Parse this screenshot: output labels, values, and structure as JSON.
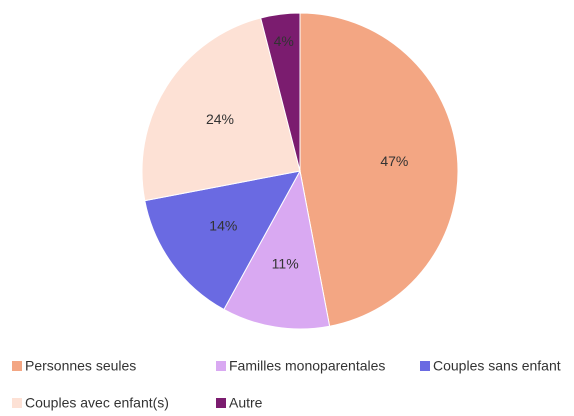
{
  "chart_data": {
    "type": "pie",
    "categories": [
      "Personnes seules",
      "Familles monoparentales",
      "Couples sans enfant",
      "Couples avec enfant(s)",
      "Autre"
    ],
    "values": [
      47,
      11,
      14,
      24,
      4
    ],
    "value_labels": [
      "47%",
      "11%",
      "14%",
      "24%",
      "4%"
    ],
    "colors": [
      "#f3a683",
      "#d9a9f2",
      "#6a6ae2",
      "#fde1d5",
      "#7b1c6f"
    ],
    "legend": "bottom"
  }
}
